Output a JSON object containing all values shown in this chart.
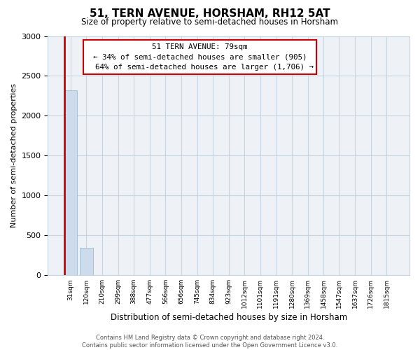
{
  "title": "51, TERN AVENUE, HORSHAM, RH12 5AT",
  "subtitle": "Size of property relative to semi-detached houses in Horsham",
  "xlabel": "Distribution of semi-detached houses by size in Horsham",
  "ylabel": "Number of semi-detached properties",
  "categories": [
    "31sqm",
    "120sqm",
    "210sqm",
    "299sqm",
    "388sqm",
    "477sqm",
    "566sqm",
    "656sqm",
    "745sqm",
    "834sqm",
    "923sqm",
    "1012sqm",
    "1101sqm",
    "1191sqm",
    "1280sqm",
    "1369sqm",
    "1458sqm",
    "1547sqm",
    "1637sqm",
    "1726sqm",
    "1815sqm"
  ],
  "values": [
    2320,
    340,
    0,
    0,
    0,
    0,
    0,
    0,
    0,
    0,
    0,
    0,
    0,
    0,
    0,
    0,
    0,
    0,
    0,
    0,
    0
  ],
  "bar_color": "#ccdcec",
  "bar_edgecolor": "#a8c0d4",
  "highlight_color": "#cc0000",
  "property_size": "79sqm",
  "property_name": "51 TERN AVENUE",
  "pct_smaller": 34,
  "pct_larger": 64,
  "count_smaller": 905,
  "count_larger": 1706,
  "annotation_box_edgecolor": "#cc0000",
  "ylim": [
    0,
    3000
  ],
  "yticks": [
    0,
    500,
    1000,
    1500,
    2000,
    2500,
    3000
  ],
  "footer_line1": "Contains HM Land Registry data © Crown copyright and database right 2024.",
  "footer_line2": "Contains public sector information licensed under the Open Government Licence v3.0.",
  "bg_color": "#ffffff",
  "plot_bg_color": "#eef2f7",
  "grid_color": "#c8d4e0"
}
